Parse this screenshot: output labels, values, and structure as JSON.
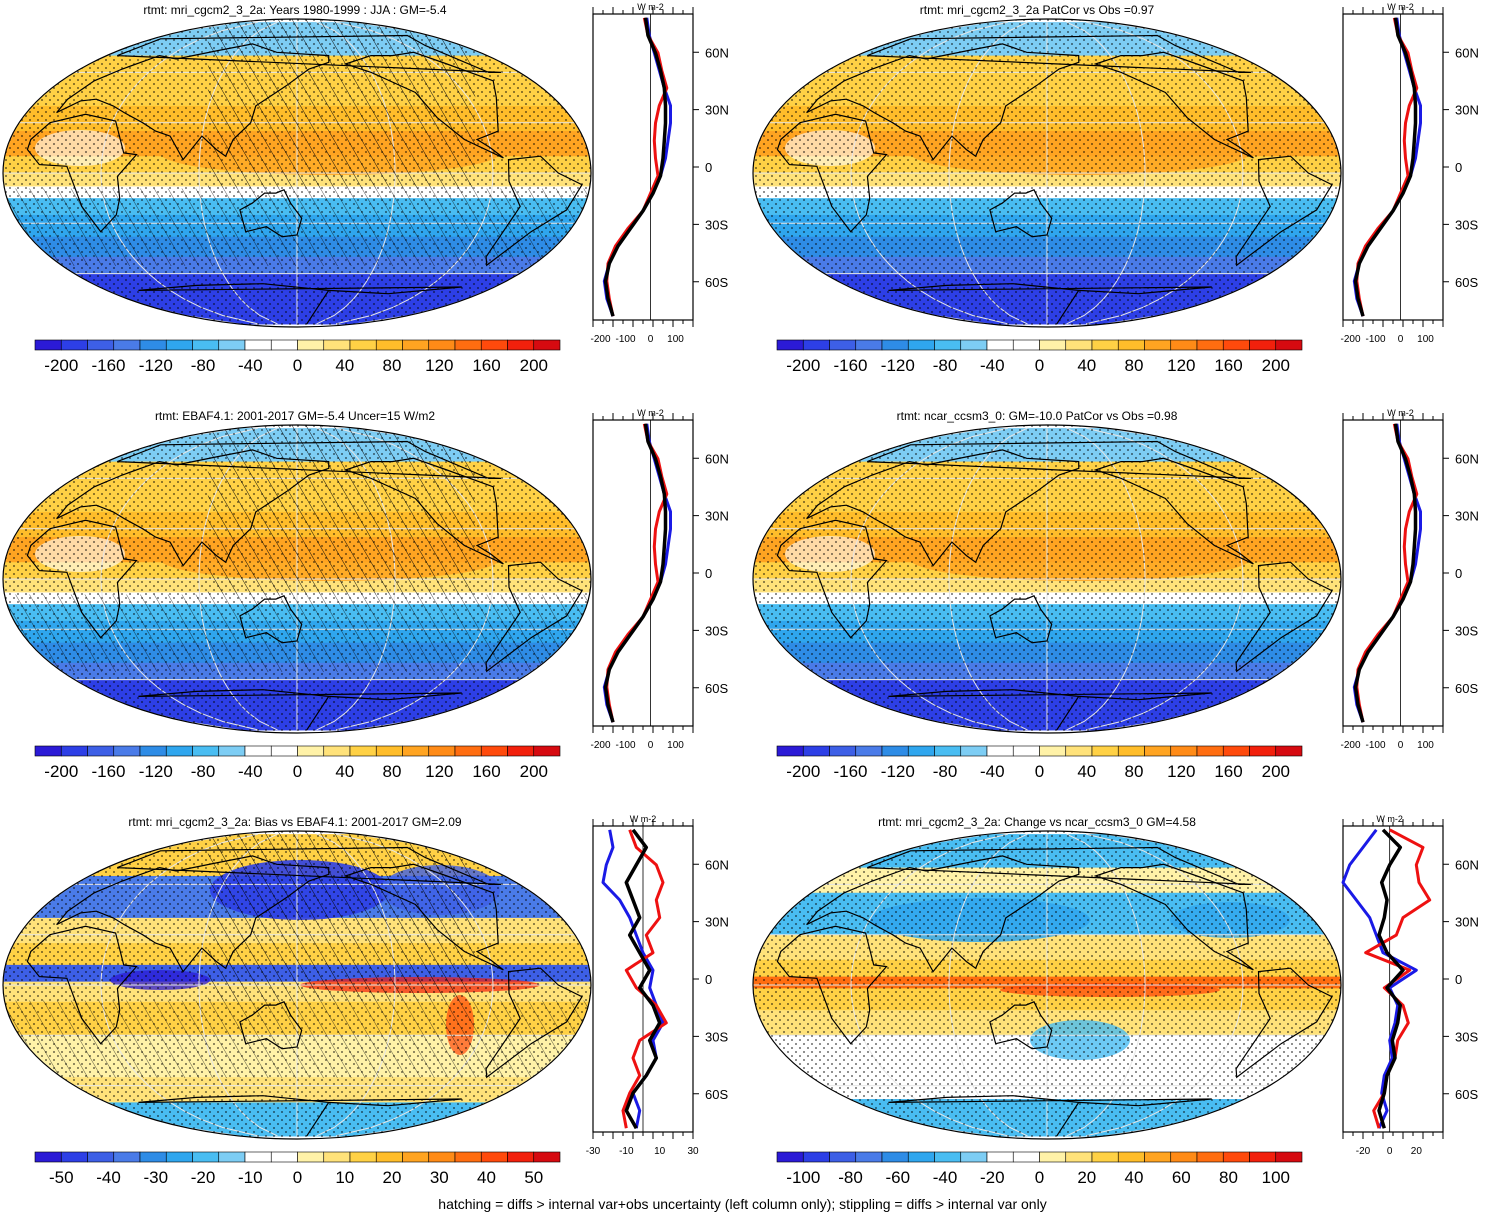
{
  "panels": [
    {
      "title": "rtmt: mri_cgcm2_3_2a: Years 1980-1999 : JJA : GM=-5.4",
      "colorbar": {
        "labels": [
          "-200",
          "-160",
          "-120",
          "-80",
          "-40",
          "0",
          "40",
          "80",
          "120",
          "160",
          "200"
        ],
        "colors": [
          "#2b1ad6",
          "#2d3fe6",
          "#3d5fe6",
          "#4a7be8",
          "#2e8ce6",
          "#2fa6ee",
          "#49bdf2",
          "#7dcdf4",
          "#ffffff",
          "#ffffff",
          "#fff2a8",
          "#ffe27a",
          "#ffd145",
          "#ffbd2a",
          "#ffa421",
          "#ff8b17",
          "#ff6d10",
          "#ff4a0c",
          "#f2200c",
          "#d60a10"
        ]
      },
      "zonal": {
        "unit_label": "W m-2",
        "xticks": [
          "-200",
          "-100",
          "0",
          "100"
        ],
        "latlabels": [
          "60N",
          "30N",
          "0",
          "30S",
          "60S"
        ]
      },
      "hatched": true,
      "style": "mean",
      "zonal_series": {
        "black": [
          -20,
          -10,
          20,
          40,
          55,
          60,
          60,
          55,
          50,
          40,
          10,
          -30,
          -80,
          -130,
          -165,
          -180,
          -170,
          -150
        ],
        "blue": [
          -15,
          -5,
          15,
          35,
          55,
          80,
          80,
          70,
          60,
          40,
          10,
          -30,
          -80,
          -130,
          -165,
          -185,
          -175,
          -150
        ],
        "red": [
          -25,
          -10,
          30,
          45,
          65,
          35,
          20,
          15,
          20,
          30,
          0,
          -30,
          -90,
          -140,
          -170,
          -175,
          -165,
          -150
        ]
      }
    },
    {
      "title": "rtmt: mri_cgcm2_3_2a PatCor vs Obs =0.97",
      "colorbar": {
        "labels": [
          "-200",
          "-160",
          "-120",
          "-80",
          "-40",
          "0",
          "40",
          "80",
          "120",
          "160",
          "200"
        ]
      },
      "zonal": {
        "unit_label": "W m-2",
        "xticks": [
          "-200",
          "-100",
          "0",
          "100"
        ],
        "latlabels": [
          "60N",
          "30N",
          "0",
          "30S",
          "60S"
        ]
      },
      "hatched": false,
      "style": "mean",
      "zonal_series": {
        "black": [
          -20,
          -10,
          20,
          40,
          55,
          60,
          60,
          55,
          50,
          40,
          10,
          -30,
          -80,
          -130,
          -165,
          -180,
          -170,
          -150
        ],
        "blue": [
          -15,
          -5,
          15,
          35,
          55,
          80,
          80,
          70,
          60,
          40,
          10,
          -30,
          -80,
          -130,
          -165,
          -185,
          -175,
          -150
        ],
        "red": [
          -25,
          -10,
          30,
          45,
          65,
          35,
          20,
          15,
          20,
          30,
          0,
          -30,
          -90,
          -140,
          -170,
          -175,
          -165,
          -150
        ]
      }
    },
    {
      "title": "rtmt: EBAF4.1: 2001-2017 GM=-5.4 Uncer=15 W/m2",
      "colorbar": {
        "labels": [
          "-200",
          "-160",
          "-120",
          "-80",
          "-40",
          "0",
          "40",
          "80",
          "120",
          "160",
          "200"
        ]
      },
      "zonal": {
        "unit_label": "W m-2",
        "xticks": [
          "-200",
          "-100",
          "0",
          "100"
        ],
        "latlabels": [
          "60N",
          "30N",
          "0",
          "30S",
          "60S"
        ]
      },
      "hatched": true,
      "style": "mean",
      "zonal_series": {
        "black": [
          -20,
          -10,
          20,
          40,
          55,
          60,
          60,
          55,
          50,
          40,
          10,
          -30,
          -80,
          -130,
          -165,
          -180,
          -170,
          -150
        ],
        "blue": [
          -15,
          -5,
          15,
          35,
          55,
          80,
          80,
          70,
          60,
          40,
          10,
          -30,
          -80,
          -130,
          -165,
          -185,
          -175,
          -150
        ],
        "red": [
          -25,
          -10,
          30,
          45,
          65,
          35,
          20,
          15,
          20,
          30,
          0,
          -30,
          -90,
          -140,
          -170,
          -175,
          -165,
          -150
        ]
      }
    },
    {
      "title": "rtmt: ncar_ccsm3_0: GM=-10.0 PatCor vs Obs =0.98",
      "colorbar": {
        "labels": [
          "-200",
          "-160",
          "-120",
          "-80",
          "-40",
          "0",
          "40",
          "80",
          "120",
          "160",
          "200"
        ]
      },
      "zonal": {
        "unit_label": "W m-2",
        "xticks": [
          "-200",
          "-100",
          "0",
          "100"
        ],
        "latlabels": [
          "60N",
          "30N",
          "0",
          "30S",
          "60S"
        ]
      },
      "hatched": false,
      "style": "mean",
      "zonal_series": {
        "black": [
          -20,
          -10,
          20,
          40,
          55,
          60,
          60,
          55,
          50,
          40,
          10,
          -30,
          -80,
          -130,
          -165,
          -180,
          -170,
          -150
        ],
        "blue": [
          -15,
          -5,
          15,
          35,
          55,
          80,
          80,
          70,
          60,
          40,
          10,
          -30,
          -80,
          -130,
          -165,
          -185,
          -175,
          -150
        ],
        "red": [
          -25,
          -10,
          30,
          45,
          65,
          35,
          20,
          15,
          20,
          30,
          0,
          -30,
          -90,
          -140,
          -170,
          -175,
          -165,
          -150
        ]
      }
    },
    {
      "title": "rtmt: mri_cgcm2_3_2a: Bias vs EBAF4.1: 2001-2017 GM=2.09",
      "colorbar": {
        "labels": [
          "-50",
          "-40",
          "-30",
          "-20",
          "-10",
          "0",
          "10",
          "20",
          "30",
          "40",
          "50"
        ]
      },
      "zonal": {
        "unit_label": "W m-2",
        "xticks": [
          "-30",
          "-10",
          "10",
          "30"
        ],
        "latlabels": [
          "60N",
          "30N",
          "0",
          "30S",
          "60S"
        ]
      },
      "hatched": true,
      "style": "bias",
      "zonal_series": {
        "black": [
          -6,
          2,
          -4,
          -10,
          -6,
          -2,
          -8,
          -2,
          4,
          -2,
          6,
          10,
          4,
          8,
          2,
          -6,
          -10,
          -4
        ],
        "blue": [
          -20,
          -18,
          -22,
          -24,
          -14,
          -8,
          -4,
          0,
          6,
          4,
          8,
          12,
          6,
          8,
          2,
          -6,
          -2,
          -4
        ],
        "red": [
          -8,
          -4,
          8,
          12,
          8,
          10,
          2,
          6,
          -10,
          -4,
          8,
          14,
          -2,
          -6,
          -2,
          -8,
          -12,
          -10
        ]
      }
    },
    {
      "title": "rtmt: mri_cgcm2_3_2a: Change vs ncar_ccsm3_0 GM=4.58",
      "colorbar": {
        "labels": [
          "-100",
          "-80",
          "-60",
          "-40",
          "-20",
          "0",
          "20",
          "40",
          "60",
          "80",
          "100"
        ]
      },
      "zonal": {
        "unit_label": "W m-2",
        "xticks": [
          "-20",
          "0",
          "20"
        ],
        "latlabels": [
          "60N",
          "30N",
          "0",
          "30S",
          "60S"
        ]
      },
      "hatched": false,
      "style": "change",
      "zonal_series": {
        "black": [
          -5,
          8,
          0,
          -6,
          -2,
          -4,
          -8,
          -2,
          10,
          -2,
          8,
          6,
          2,
          4,
          -2,
          -4,
          -8,
          -4
        ],
        "blue": [
          -10,
          -20,
          -30,
          -35,
          -25,
          -15,
          -10,
          -5,
          20,
          0,
          6,
          4,
          0,
          2,
          -4,
          -6,
          -2,
          -8
        ],
        "red": [
          0,
          25,
          20,
          22,
          30,
          10,
          5,
          -18,
          15,
          -4,
          10,
          14,
          6,
          4,
          -2,
          -4,
          -12,
          -8
        ]
      }
    }
  ],
  "footer": "hatching = diffs > internal var+obs uncertainty (left column only); stippling = diffs > internal var only"
}
